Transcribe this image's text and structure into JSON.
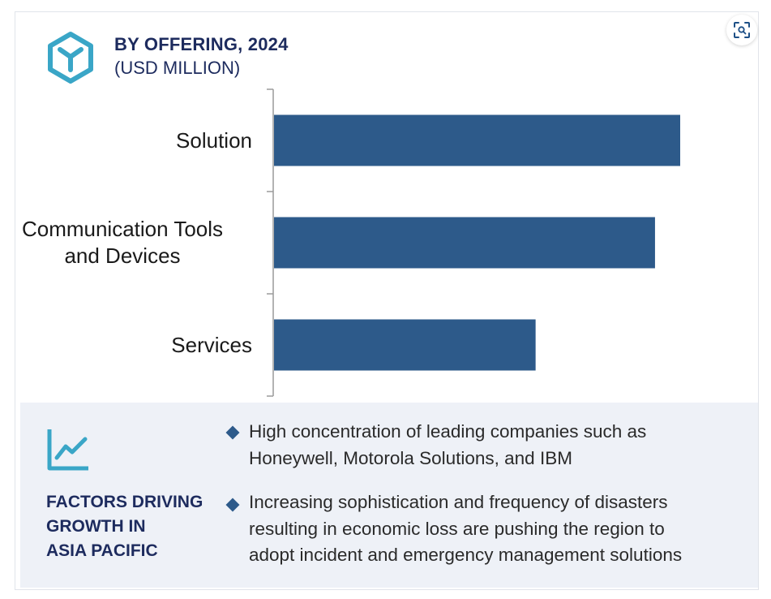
{
  "header": {
    "title": "BY OFFERING, 2024",
    "subtitle": "(USD MILLION)",
    "logo_icon": "hexagon-logo-icon",
    "zoom_icon": "zoom-expand-icon"
  },
  "chart_data": {
    "type": "bar",
    "orientation": "horizontal",
    "title": "BY OFFERING, 2024",
    "subtitle": "(USD MILLION)",
    "categories": [
      "Solution",
      "Communication Tools and Devices",
      "Services"
    ],
    "category_lines": [
      [
        "Solution"
      ],
      [
        "Communication Tools",
        "and Devices"
      ],
      [
        "Services"
      ]
    ],
    "values": [
      100,
      93.8,
      64.4
    ],
    "xlim": [
      0,
      100
    ],
    "bar_color": "#2d5a8a",
    "grid": false,
    "legend": "none",
    "value_axis_shown": false
  },
  "factors": {
    "icon": "trend-chart-icon",
    "heading": [
      "FACTORS DRIVING",
      "GROWTH IN",
      "ASIA PACIFIC"
    ],
    "bullets": [
      [
        "High concentration of leading companies such as",
        "Honeywell, Motorola Solutions, and IBM"
      ],
      [
        "Increasing sophistication and frequency of disasters",
        "resulting in economic loss are pushing the region to",
        "adopt incident and emergency management solutions"
      ]
    ]
  },
  "colors": {
    "bar": "#2d5a8a",
    "accent": "#3aa6c7",
    "heading": "#1d2b5e",
    "panel_bg": "#eef1f7"
  }
}
